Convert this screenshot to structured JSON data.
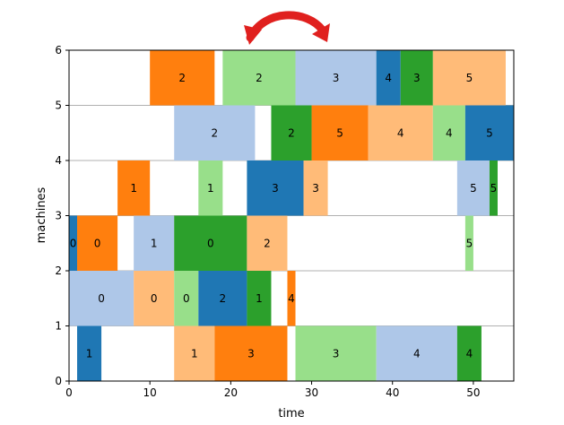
{
  "chart_data": {
    "type": "gantt",
    "xlabel": "time",
    "ylabel": "machines",
    "xlim": [
      0,
      55
    ],
    "ylim": [
      0,
      6
    ],
    "xticks": [
      "0",
      "10",
      "20",
      "30",
      "40",
      "50"
    ],
    "yticks": [
      "0",
      "1",
      "2",
      "3",
      "4",
      "5",
      "6"
    ],
    "grid": "horizontal",
    "annotation": "red swap arrow",
    "colors": {
      "tab-blue": "#1f77b4",
      "light-blue": "#aec7e8",
      "orange": "#ff7f0e",
      "light-orange": "#ffbb78",
      "green": "#2ca02c",
      "light-green": "#98df8a",
      "arrow-red": "#e0201e"
    },
    "tasks": [
      {
        "machine": 0,
        "start": 1,
        "end": 4,
        "label": "1",
        "color": "tab-blue"
      },
      {
        "machine": 0,
        "start": 13,
        "end": 18,
        "label": "1",
        "color": "light-orange"
      },
      {
        "machine": 0,
        "start": 18,
        "end": 27,
        "label": "3",
        "color": "orange"
      },
      {
        "machine": 0,
        "start": 28,
        "end": 38,
        "label": "3",
        "color": "light-green"
      },
      {
        "machine": 0,
        "start": 38,
        "end": 48,
        "label": "4",
        "color": "light-blue"
      },
      {
        "machine": 0,
        "start": 48,
        "end": 51,
        "label": "4",
        "color": "green"
      },
      {
        "machine": 1,
        "start": 0,
        "end": 8,
        "label": "0",
        "color": "light-blue"
      },
      {
        "machine": 1,
        "start": 8,
        "end": 13,
        "label": "0",
        "color": "light-orange"
      },
      {
        "machine": 1,
        "start": 13,
        "end": 16,
        "label": "0",
        "color": "light-green"
      },
      {
        "machine": 1,
        "start": 16,
        "end": 22,
        "label": "2",
        "color": "tab-blue"
      },
      {
        "machine": 1,
        "start": 22,
        "end": 25,
        "label": "1",
        "color": "green"
      },
      {
        "machine": 1,
        "start": 27,
        "end": 28,
        "label": "4",
        "color": "orange"
      },
      {
        "machine": 2,
        "start": 0,
        "end": 1,
        "label": "0",
        "color": "tab-blue"
      },
      {
        "machine": 2,
        "start": 1,
        "end": 6,
        "label": "0",
        "color": "orange"
      },
      {
        "machine": 2,
        "start": 8,
        "end": 13,
        "label": "1",
        "color": "light-blue"
      },
      {
        "machine": 2,
        "start": 13,
        "end": 22,
        "label": "0",
        "color": "green"
      },
      {
        "machine": 2,
        "start": 22,
        "end": 27,
        "label": "2",
        "color": "light-orange"
      },
      {
        "machine": 2,
        "start": 49,
        "end": 50,
        "label": "5",
        "color": "light-green"
      },
      {
        "machine": 3,
        "start": 6,
        "end": 10,
        "label": "1",
        "color": "orange"
      },
      {
        "machine": 3,
        "start": 16,
        "end": 19,
        "label": "1",
        "color": "light-green"
      },
      {
        "machine": 3,
        "start": 22,
        "end": 29,
        "label": "3",
        "color": "tab-blue"
      },
      {
        "machine": 3,
        "start": 29,
        "end": 32,
        "label": "3",
        "color": "light-orange"
      },
      {
        "machine": 3,
        "start": 48,
        "end": 52,
        "label": "5",
        "color": "light-blue"
      },
      {
        "machine": 3,
        "start": 52,
        "end": 53,
        "label": "5",
        "color": "green"
      },
      {
        "machine": 4,
        "start": 13,
        "end": 23,
        "label": "2",
        "color": "light-blue"
      },
      {
        "machine": 4,
        "start": 25,
        "end": 30,
        "label": "2",
        "color": "green"
      },
      {
        "machine": 4,
        "start": 30,
        "end": 37,
        "label": "5",
        "color": "orange"
      },
      {
        "machine": 4,
        "start": 37,
        "end": 45,
        "label": "4",
        "color": "light-orange"
      },
      {
        "machine": 4,
        "start": 45,
        "end": 49,
        "label": "4",
        "color": "light-green"
      },
      {
        "machine": 4,
        "start": 49,
        "end": 55,
        "label": "5",
        "color": "tab-blue"
      },
      {
        "machine": 5,
        "start": 10,
        "end": 18,
        "label": "2",
        "color": "orange"
      },
      {
        "machine": 5,
        "start": 19,
        "end": 28,
        "label": "2",
        "color": "light-green"
      },
      {
        "machine": 5,
        "start": 28,
        "end": 38,
        "label": "3",
        "color": "light-blue"
      },
      {
        "machine": 5,
        "start": 38,
        "end": 41,
        "label": "4",
        "color": "tab-blue"
      },
      {
        "machine": 5,
        "start": 41,
        "end": 45,
        "label": "3",
        "color": "green"
      },
      {
        "machine": 5,
        "start": 45,
        "end": 54,
        "label": "5",
        "color": "light-orange"
      }
    ]
  }
}
